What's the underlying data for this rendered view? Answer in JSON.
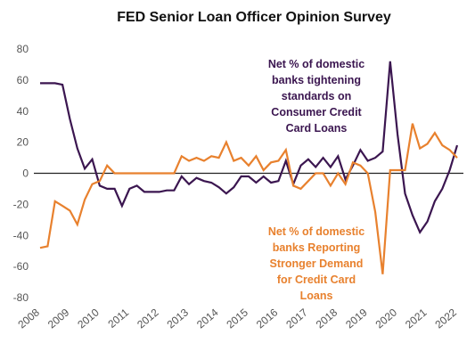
{
  "chart_data": {
    "type": "line",
    "title": "FED Senior Loan Officer Opinion Survey",
    "x": [
      2008,
      2008.25,
      2008.5,
      2008.75,
      2009,
      2009.25,
      2009.5,
      2009.75,
      2010,
      2010.25,
      2010.5,
      2010.75,
      2011,
      2011.25,
      2011.5,
      2011.75,
      2012,
      2012.25,
      2012.5,
      2012.75,
      2013,
      2013.25,
      2013.5,
      2013.75,
      2014,
      2014.25,
      2014.5,
      2014.75,
      2015,
      2015.25,
      2015.5,
      2015.75,
      2016,
      2016.25,
      2016.5,
      2016.75,
      2017,
      2017.25,
      2017.5,
      2017.75,
      2018,
      2018.25,
      2018.5,
      2018.75,
      2019,
      2019.25,
      2019.5,
      2019.75,
      2020,
      2020.25,
      2020.5,
      2020.75,
      2021,
      2021.25,
      2021.5,
      2021.75,
      2022
    ],
    "series": [
      {
        "name": "Net % of domestic banks tightening standards on Consumer Credit Card Loans",
        "color": "#3b1650",
        "label_lines": [
          "Net % of domestic",
          "banks tightening",
          "standards on",
          "Consumer Credit",
          "Card Loans"
        ],
        "values": [
          58,
          58,
          58,
          57,
          35,
          16,
          3,
          9,
          -8,
          -10,
          -10,
          -21,
          -10,
          -8,
          -12,
          -12,
          -12,
          -11,
          -11,
          -2,
          -7,
          -3,
          -5,
          -6,
          -9,
          -13,
          -9,
          -2,
          -2,
          -6,
          -2,
          -6,
          -5,
          8,
          -7,
          5,
          9,
          4,
          10,
          4,
          11,
          -4,
          5,
          15,
          8,
          10,
          14,
          72,
          25,
          -13,
          -27,
          -38,
          -31,
          -18,
          -10,
          2,
          18
        ]
      },
      {
        "name": "Net % of domestic banks Reporting Stronger Demand for Credit Card Loans",
        "color": "#e8812e",
        "label_lines": [
          "Net % of domestic",
          "banks Reporting",
          "Stronger Demand",
          "for Credit Card",
          "Loans"
        ],
        "values": [
          -48,
          -47,
          -18,
          -21,
          -24,
          -33,
          -17,
          -7,
          -5,
          5,
          0,
          0,
          0,
          0,
          0,
          0,
          0,
          0,
          0,
          11,
          8,
          10,
          8,
          11,
          10,
          20,
          8,
          10,
          5,
          11,
          2,
          7,
          8,
          15,
          -8,
          -10,
          -5,
          0,
          0,
          -8,
          0,
          -7,
          7,
          5,
          0,
          -25,
          -65,
          2,
          2,
          2,
          32,
          16,
          19,
          26,
          18,
          15,
          10
        ]
      }
    ],
    "xlim": [
      2007.5,
      2022.2
    ],
    "xticks": [
      2008,
      2009,
      2010,
      2011,
      2012,
      2013,
      2014,
      2015,
      2016,
      2017,
      2018,
      2019,
      2020,
      2021,
      2022
    ],
    "ylim": [
      -80,
      80
    ],
    "yticks": [
      -80,
      -60,
      -40,
      -20,
      0,
      20,
      40,
      60,
      80
    ],
    "zero_line": true
  }
}
